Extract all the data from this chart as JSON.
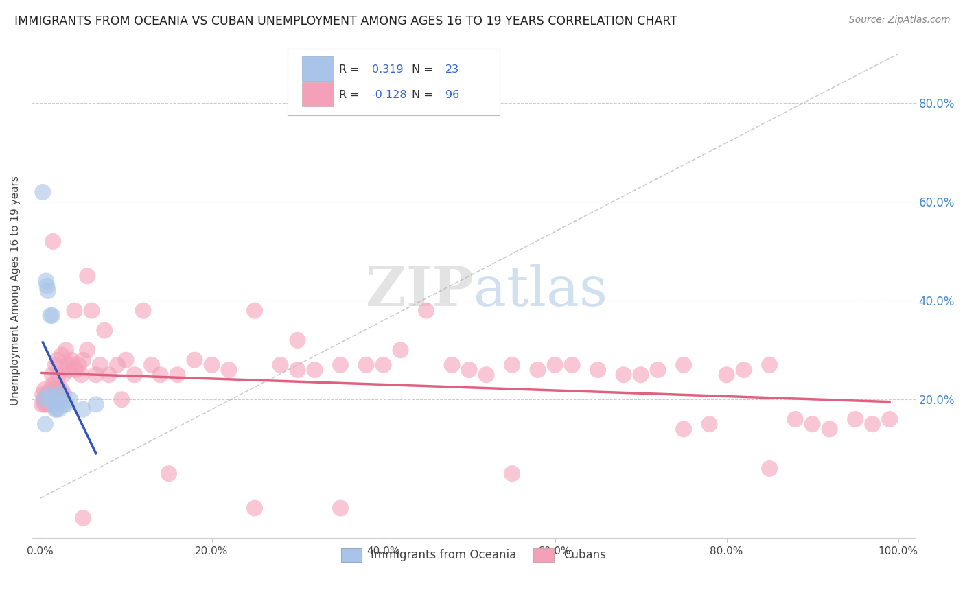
{
  "title": "IMMIGRANTS FROM OCEANIA VS CUBAN UNEMPLOYMENT AMONG AGES 16 TO 19 YEARS CORRELATION CHART",
  "source": "Source: ZipAtlas.com",
  "ylabel": "Unemployment Among Ages 16 to 19 years",
  "x_tick_labels": [
    "0.0%",
    "20.0%",
    "40.0%",
    "60.0%",
    "80.0%",
    "100.0%"
  ],
  "x_tick_vals": [
    0.0,
    0.2,
    0.4,
    0.6,
    0.8,
    1.0
  ],
  "y_tick_labels": [
    "20.0%",
    "40.0%",
    "60.0%",
    "80.0%"
  ],
  "y_tick_vals": [
    0.2,
    0.4,
    0.6,
    0.8
  ],
  "xlim": [
    -0.01,
    1.02
  ],
  "ylim": [
    -0.08,
    0.92
  ],
  "background_color": "#ffffff",
  "grid_color": "#cccccc",
  "legend_labels": [
    "Immigrants from Oceania",
    "Cubans"
  ],
  "oceania_color": "#a8c4e8",
  "cuban_color": "#f4a0b8",
  "oceania_line_color": "#3355bb",
  "cuban_line_color": "#e06080",
  "R_oceania": 0.319,
  "N_oceania": 23,
  "R_cuban": -0.128,
  "N_cuban": 96,
  "oceania_x": [
    0.003,
    0.005,
    0.006,
    0.007,
    0.008,
    0.009,
    0.01,
    0.011,
    0.012,
    0.014,
    0.015,
    0.016,
    0.017,
    0.018,
    0.019,
    0.02,
    0.022,
    0.025,
    0.028,
    0.03,
    0.035,
    0.05,
    0.065
  ],
  "oceania_y": [
    0.62,
    0.2,
    0.15,
    0.44,
    0.43,
    0.42,
    0.21,
    0.2,
    0.37,
    0.37,
    0.2,
    0.19,
    0.19,
    0.18,
    0.18,
    0.21,
    0.18,
    0.21,
    0.19,
    0.19,
    0.2,
    0.18,
    0.19
  ],
  "cuban_x": [
    0.002,
    0.003,
    0.004,
    0.005,
    0.006,
    0.007,
    0.008,
    0.009,
    0.01,
    0.011,
    0.012,
    0.013,
    0.014,
    0.015,
    0.016,
    0.017,
    0.018,
    0.019,
    0.02,
    0.021,
    0.022,
    0.023,
    0.024,
    0.025,
    0.027,
    0.028,
    0.03,
    0.032,
    0.034,
    0.036,
    0.038,
    0.04,
    0.042,
    0.045,
    0.048,
    0.05,
    0.055,
    0.06,
    0.065,
    0.07,
    0.08,
    0.09,
    0.1,
    0.11,
    0.12,
    0.13,
    0.14,
    0.16,
    0.18,
    0.2,
    0.22,
    0.25,
    0.28,
    0.3,
    0.32,
    0.35,
    0.38,
    0.4,
    0.42,
    0.45,
    0.48,
    0.5,
    0.52,
    0.55,
    0.58,
    0.6,
    0.62,
    0.65,
    0.68,
    0.7,
    0.72,
    0.75,
    0.78,
    0.8,
    0.82,
    0.85,
    0.88,
    0.9,
    0.92,
    0.95,
    0.97,
    0.99,
    0.005,
    0.015,
    0.025,
    0.055,
    0.075,
    0.095,
    0.15,
    0.25,
    0.35,
    0.55,
    0.75,
    0.85,
    0.05,
    0.3
  ],
  "cuban_y": [
    0.19,
    0.21,
    0.2,
    0.22,
    0.2,
    0.19,
    0.21,
    0.2,
    0.19,
    0.21,
    0.22,
    0.2,
    0.25,
    0.23,
    0.21,
    0.22,
    0.27,
    0.2,
    0.28,
    0.25,
    0.22,
    0.21,
    0.2,
    0.29,
    0.25,
    0.21,
    0.3,
    0.27,
    0.26,
    0.28,
    0.27,
    0.38,
    0.26,
    0.27,
    0.25,
    0.28,
    0.3,
    0.38,
    0.25,
    0.27,
    0.25,
    0.27,
    0.28,
    0.25,
    0.38,
    0.27,
    0.25,
    0.25,
    0.28,
    0.27,
    0.26,
    0.38,
    0.27,
    0.26,
    0.26,
    0.27,
    0.27,
    0.27,
    0.3,
    0.38,
    0.27,
    0.26,
    0.25,
    0.27,
    0.26,
    0.27,
    0.27,
    0.26,
    0.25,
    0.25,
    0.26,
    0.27,
    0.15,
    0.25,
    0.26,
    0.27,
    0.16,
    0.15,
    0.14,
    0.16,
    0.15,
    0.16,
    0.19,
    0.52,
    0.22,
    0.45,
    0.34,
    0.2,
    0.05,
    -0.02,
    -0.02,
    0.05,
    0.14,
    0.06,
    -0.04,
    0.32
  ]
}
